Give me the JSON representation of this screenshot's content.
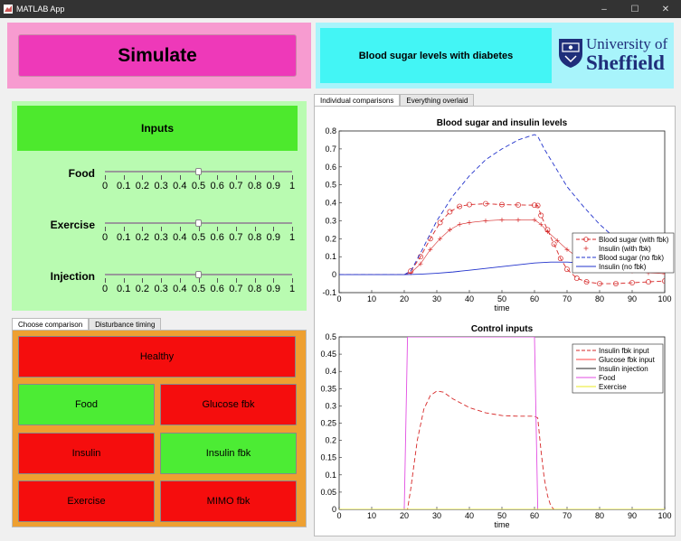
{
  "window": {
    "title": "MATLAB App",
    "minimize": "–",
    "maximize": "☐",
    "close": "✕"
  },
  "simulate": {
    "label": "Simulate",
    "color": "#ee39b9"
  },
  "header": {
    "title": "Blood sugar levels with diabetes",
    "logo_line1": "University of",
    "logo_line2": "Sheffield"
  },
  "inputs": {
    "heading": "Inputs",
    "tick_labels": [
      "0",
      "0.1",
      "0.2",
      "0.3",
      "0.4",
      "0.5",
      "0.6",
      "0.7",
      "0.8",
      "0.9",
      "1"
    ],
    "sliders": [
      {
        "label": "Food",
        "value": 0.5
      },
      {
        "label": "Exercise",
        "value": 0.5
      },
      {
        "label": "Injection",
        "value": 0.5
      }
    ]
  },
  "left_tabs": {
    "tabs": [
      "Choose comparison",
      "Disturbance timing"
    ],
    "active": 0
  },
  "comparison_buttons": [
    {
      "label": "Healthy",
      "state": "red"
    },
    {
      "label": "Food",
      "state": "green"
    },
    {
      "label": "Glucose fbk",
      "state": "red"
    },
    {
      "label": "Insulin",
      "state": "red"
    },
    {
      "label": "Insulin fbk",
      "state": "green"
    },
    {
      "label": "Exercise",
      "state": "red"
    },
    {
      "label": "MIMO fbk",
      "state": "red"
    }
  ],
  "right_tabs": {
    "tabs": [
      "Individual comparisons",
      "Everything overlaid"
    ],
    "active": 0
  },
  "chart_data": [
    {
      "type": "line",
      "title": "Blood sugar and insulin levels",
      "xlabel": "time",
      "ylabel": "",
      "xlim": [
        0,
        100
      ],
      "ylim": [
        -0.1,
        0.8
      ],
      "xticks": [
        "0",
        "10",
        "20",
        "30",
        "40",
        "50",
        "60",
        "70",
        "80",
        "90",
        "100"
      ],
      "yticks": [
        "-0.1",
        "0",
        "0.1",
        "0.2",
        "0.3",
        "0.4",
        "0.5",
        "0.6",
        "0.7",
        "0.8"
      ],
      "legend_position": "right",
      "series": [
        {
          "name": "Blood sugar (with fbk)",
          "color": "#d62828",
          "style": "dashed-circle",
          "x": [
            0,
            20,
            22,
            25,
            28,
            31,
            34,
            37,
            40,
            45,
            50,
            55,
            60,
            61,
            62,
            64,
            66,
            68,
            70,
            73,
            76,
            80,
            85,
            90,
            95,
            100
          ],
          "y": [
            0,
            0,
            0.02,
            0.1,
            0.2,
            0.29,
            0.35,
            0.38,
            0.39,
            0.395,
            0.39,
            0.388,
            0.387,
            0.385,
            0.33,
            0.25,
            0.17,
            0.09,
            0.03,
            -0.02,
            -0.04,
            -0.05,
            -0.05,
            -0.045,
            -0.04,
            -0.035
          ]
        },
        {
          "name": "Insulin (with fbk)",
          "color": "#d62828",
          "style": "plus",
          "x": [
            0,
            20,
            22,
            25,
            28,
            31,
            34,
            37,
            40,
            45,
            50,
            55,
            60,
            62,
            64,
            67,
            70,
            73,
            76,
            80,
            85,
            90,
            95,
            100
          ],
          "y": [
            0,
            0,
            0.01,
            0.06,
            0.14,
            0.2,
            0.25,
            0.28,
            0.29,
            0.3,
            0.305,
            0.305,
            0.305,
            0.28,
            0.24,
            0.19,
            0.14,
            0.1,
            0.07,
            0.05,
            0.03,
            0.02,
            0.01,
            0.005
          ]
        },
        {
          "name": "Blood sugar (no fbk)",
          "color": "#2233cc",
          "style": "dashed",
          "x": [
            0,
            20,
            22,
            25,
            30,
            35,
            40,
            45,
            50,
            55,
            60,
            61,
            63,
            66,
            70,
            75,
            80,
            85,
            90,
            95,
            100
          ],
          "y": [
            0,
            0,
            0.02,
            0.12,
            0.3,
            0.44,
            0.55,
            0.64,
            0.7,
            0.75,
            0.78,
            0.77,
            0.7,
            0.61,
            0.49,
            0.38,
            0.28,
            0.2,
            0.14,
            0.09,
            0.05
          ]
        },
        {
          "name": "Insulin (no fbk)",
          "color": "#2233cc",
          "style": "solid",
          "x": [
            0,
            20,
            25,
            30,
            35,
            40,
            45,
            50,
            55,
            60,
            65,
            70,
            75,
            80,
            85,
            90,
            95,
            100
          ],
          "y": [
            0,
            0,
            0.003,
            0.008,
            0.015,
            0.025,
            0.035,
            0.045,
            0.055,
            0.065,
            0.07,
            0.07,
            0.065,
            0.058,
            0.05,
            0.043,
            0.036,
            0.03
          ]
        }
      ]
    },
    {
      "type": "line",
      "title": "Control inputs",
      "xlabel": "time",
      "ylabel": "",
      "xlim": [
        0,
        100
      ],
      "ylim": [
        0,
        0.5
      ],
      "xticks": [
        "0",
        "10",
        "20",
        "30",
        "40",
        "50",
        "60",
        "70",
        "80",
        "90",
        "100"
      ],
      "yticks": [
        "0",
        "0.05",
        "0.1",
        "0.15",
        "0.2",
        "0.25",
        "0.3",
        "0.35",
        "0.4",
        "0.45",
        "0.5"
      ],
      "legend_position": "top-right",
      "series": [
        {
          "name": "Insulin fbk input",
          "color": "#d62828",
          "style": "dashed",
          "x": [
            0,
            20,
            21,
            22,
            24,
            26,
            28,
            30,
            32,
            35,
            40,
            45,
            50,
            55,
            60,
            61,
            62,
            63,
            64,
            65,
            66,
            100
          ],
          "y": [
            0,
            0,
            0,
            0.06,
            0.2,
            0.29,
            0.33,
            0.343,
            0.34,
            0.32,
            0.295,
            0.28,
            0.272,
            0.27,
            0.27,
            0.265,
            0.17,
            0.09,
            0.04,
            0.01,
            0,
            0
          ]
        },
        {
          "name": "Glucose fbk input",
          "color": "#ff4040",
          "style": "solid",
          "x": [
            0,
            100
          ],
          "y": [
            0,
            0
          ]
        },
        {
          "name": "Insulin injection",
          "color": "#222222",
          "style": "solid",
          "x": [
            0,
            100
          ],
          "y": [
            0,
            0
          ]
        },
        {
          "name": "Food",
          "color": "#e24ee2",
          "style": "solid",
          "x": [
            0,
            20,
            21,
            60,
            61,
            100
          ],
          "y": [
            0,
            0,
            0.5,
            0.5,
            0,
            0
          ]
        },
        {
          "name": "Exercise",
          "color": "#e8e820",
          "style": "solid",
          "x": [
            0,
            100
          ],
          "y": [
            0,
            0
          ]
        }
      ]
    }
  ]
}
